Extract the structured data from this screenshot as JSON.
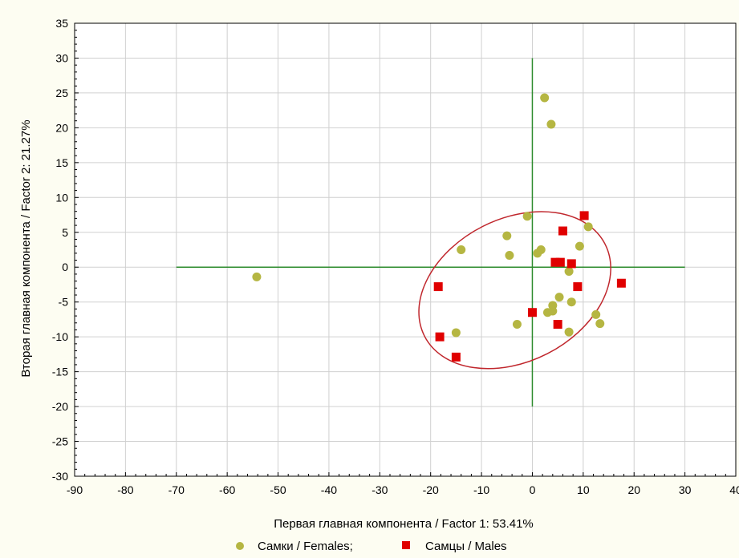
{
  "chart_data": {
    "type": "scatter",
    "xlabel": "Первая главная компонента / Factor 1: 53.41%",
    "ylabel": "Вторая главная компонента / Factor 2: 21.27%",
    "xlim": [
      -90,
      40
    ],
    "ylim": [
      -30,
      35
    ],
    "xticks": [
      -90,
      -80,
      -70,
      -60,
      -50,
      -40,
      -30,
      -20,
      -10,
      0,
      10,
      20,
      30,
      40
    ],
    "yticks": [
      -30,
      -25,
      -20,
      -15,
      -10,
      -5,
      0,
      5,
      10,
      15,
      20,
      25,
      30,
      35
    ],
    "grid": true,
    "legend_position": "bottom",
    "reference_lines": [
      {
        "x1": -70,
        "y1": 0,
        "x2": 30,
        "y2": 0
      },
      {
        "x1": 0,
        "y1": -20,
        "x2": 0,
        "y2": 30
      }
    ],
    "ellipse": {
      "points": [
        [
          -21.2,
          -9.9
        ],
        [
          -9.8,
          -12.5
        ],
        [
          2,
          -8.4
        ],
        [
          14.3,
          3.3
        ],
        [
          23.4,
          10.9
        ],
        [
          2,
          6.7
        ],
        [
          -11.4,
          -0.3
        ]
      ]
    },
    "series": [
      {
        "name": "Самки / Females;",
        "marker": "circle",
        "color": "#b5b642",
        "points": [
          [
            -54.2,
            -1.4
          ],
          [
            -14,
            2.5
          ],
          [
            -15,
            -9.4
          ],
          [
            -5,
            4.5
          ],
          [
            -4.5,
            1.7
          ],
          [
            -3,
            -8.2
          ],
          [
            -1,
            7.3
          ],
          [
            1,
            2
          ],
          [
            1.7,
            2.5
          ],
          [
            2.4,
            24.3
          ],
          [
            3.7,
            20.5
          ],
          [
            3,
            -6.5
          ],
          [
            4,
            -6.3
          ],
          [
            4,
            -5.5
          ],
          [
            5.3,
            -4.3
          ],
          [
            7.2,
            -0.6
          ],
          [
            7.7,
            -5
          ],
          [
            7.2,
            -9.3
          ],
          [
            9.3,
            3
          ],
          [
            11,
            5.8
          ],
          [
            12.5,
            -6.8
          ],
          [
            13.3,
            -8.1
          ]
        ]
      },
      {
        "name": "Самцы / Males",
        "marker": "square",
        "color": "#e00000",
        "points": [
          [
            -18.5,
            -2.8
          ],
          [
            -18.2,
            -10
          ],
          [
            -15,
            -12.9
          ],
          [
            0,
            -6.5
          ],
          [
            4.5,
            0.7
          ],
          [
            5,
            -8.2
          ],
          [
            5.5,
            0.7
          ],
          [
            6,
            5.2
          ],
          [
            7.7,
            0.5
          ],
          [
            8.9,
            -2.8
          ],
          [
            10.2,
            7.4
          ],
          [
            17.5,
            -2.3
          ]
        ]
      }
    ]
  }
}
